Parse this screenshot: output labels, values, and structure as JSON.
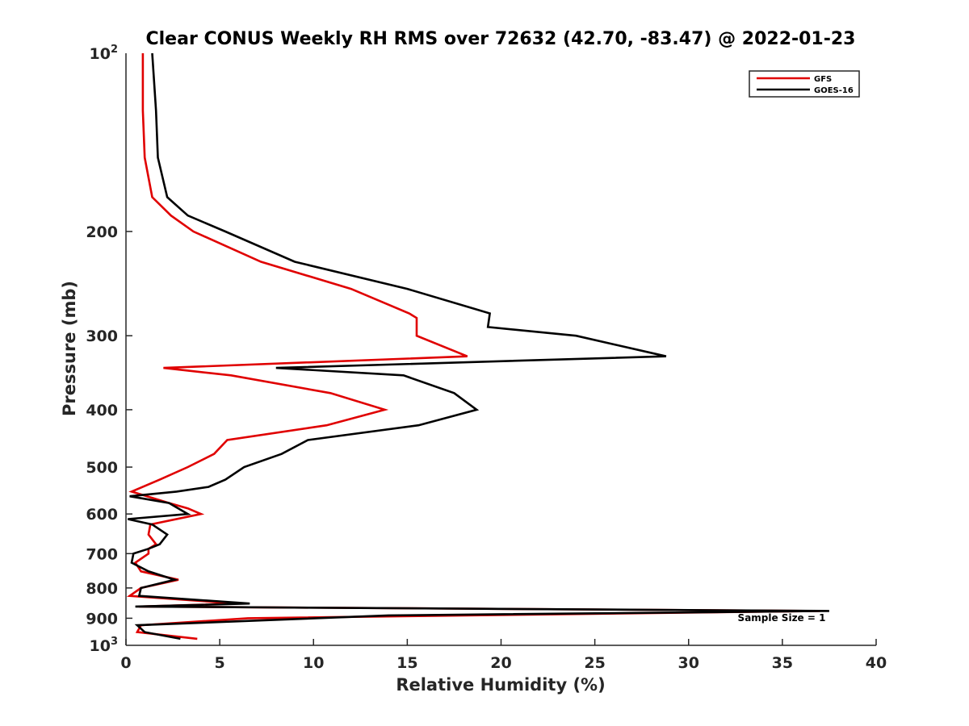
{
  "chart_data": {
    "type": "line",
    "title": "Clear CONUS Weekly RH RMS over 72632 (42.70, -83.47) @ 2022-01-23",
    "xlabel": "Relative Humidity (%)",
    "ylabel": "Pressure (mb)",
    "xlim": [
      0,
      40
    ],
    "ylim": [
      100,
      1000
    ],
    "y_scale": "log",
    "y_reversed": true,
    "x_ticks": [
      0,
      5,
      10,
      15,
      20,
      25,
      30,
      35,
      40
    ],
    "x_tick_labels": [
      "0",
      "5",
      "10",
      "15",
      "20",
      "25",
      "30",
      "35",
      "40"
    ],
    "y_ticks": [
      200,
      300,
      400,
      500,
      600,
      700,
      800,
      900
    ],
    "y_tick_labels": [
      "200",
      "300",
      "400",
      "500",
      "600",
      "700",
      "800",
      "900"
    ],
    "y_tick_top": {
      "base": "10",
      "exp": "2"
    },
    "y_tick_bottom": {
      "base": "10",
      "exp": "3"
    },
    "legend_position": "top-right",
    "annotation": "Sample Size = 1",
    "grid": false,
    "series": [
      {
        "name": "GFS",
        "color": "#e00000",
        "points": [
          [
            0.9,
            100
          ],
          [
            0.9,
            125
          ],
          [
            1.0,
            150
          ],
          [
            1.4,
            175
          ],
          [
            2.4,
            188
          ],
          [
            3.6,
            200
          ],
          [
            7.2,
            225
          ],
          [
            12.0,
            250
          ],
          [
            15.1,
            275
          ],
          [
            15.5,
            280
          ],
          [
            15.5,
            290
          ],
          [
            15.5,
            300
          ],
          [
            18.2,
            325
          ],
          [
            2.0,
            340
          ],
          [
            5.6,
            350
          ],
          [
            10.9,
            375
          ],
          [
            13.8,
            400
          ],
          [
            10.7,
            425
          ],
          [
            5.4,
            450
          ],
          [
            4.7,
            475
          ],
          [
            3.3,
            500
          ],
          [
            1.8,
            525
          ],
          [
            0.3,
            550
          ],
          [
            2.3,
            575
          ],
          [
            3.3,
            587
          ],
          [
            4.0,
            600
          ],
          [
            1.3,
            625
          ],
          [
            1.2,
            650
          ],
          [
            1.6,
            675
          ],
          [
            1.2,
            687
          ],
          [
            1.2,
            700
          ],
          [
            0.5,
            725
          ],
          [
            0.8,
            750
          ],
          [
            2.8,
            775
          ],
          [
            0.8,
            800
          ],
          [
            0.2,
            825
          ],
          [
            5.9,
            850
          ],
          [
            0.7,
            860
          ],
          [
            37.0,
            875
          ],
          [
            6.5,
            900
          ],
          [
            0.8,
            925
          ],
          [
            0.6,
            950
          ],
          [
            3.8,
            975
          ]
        ]
      },
      {
        "name": "GOES-16",
        "color": "#000000",
        "points": [
          [
            1.4,
            100
          ],
          [
            1.6,
            125
          ],
          [
            1.7,
            150
          ],
          [
            2.2,
            175
          ],
          [
            3.3,
            188
          ],
          [
            5.3,
            200
          ],
          [
            9.0,
            225
          ],
          [
            15.0,
            250
          ],
          [
            19.4,
            275
          ],
          [
            19.3,
            290
          ],
          [
            24.0,
            300
          ],
          [
            28.8,
            325
          ],
          [
            8.0,
            340
          ],
          [
            14.8,
            350
          ],
          [
            17.5,
            375
          ],
          [
            18.7,
            400
          ],
          [
            15.6,
            425
          ],
          [
            9.7,
            450
          ],
          [
            8.3,
            475
          ],
          [
            6.3,
            500
          ],
          [
            5.3,
            525
          ],
          [
            4.4,
            540
          ],
          [
            2.7,
            550
          ],
          [
            0.2,
            560
          ],
          [
            2.3,
            575
          ],
          [
            3.3,
            600
          ],
          [
            0.1,
            612
          ],
          [
            1.4,
            625
          ],
          [
            2.2,
            650
          ],
          [
            1.8,
            675
          ],
          [
            1.2,
            687
          ],
          [
            0.4,
            700
          ],
          [
            0.3,
            725
          ],
          [
            1.2,
            750
          ],
          [
            2.6,
            775
          ],
          [
            0.8,
            800
          ],
          [
            0.7,
            825
          ],
          [
            6.6,
            850
          ],
          [
            0.5,
            860
          ],
          [
            37.5,
            875
          ],
          [
            14.0,
            890
          ],
          [
            0.6,
            925
          ],
          [
            1.0,
            950
          ],
          [
            2.9,
            975
          ]
        ]
      }
    ]
  }
}
